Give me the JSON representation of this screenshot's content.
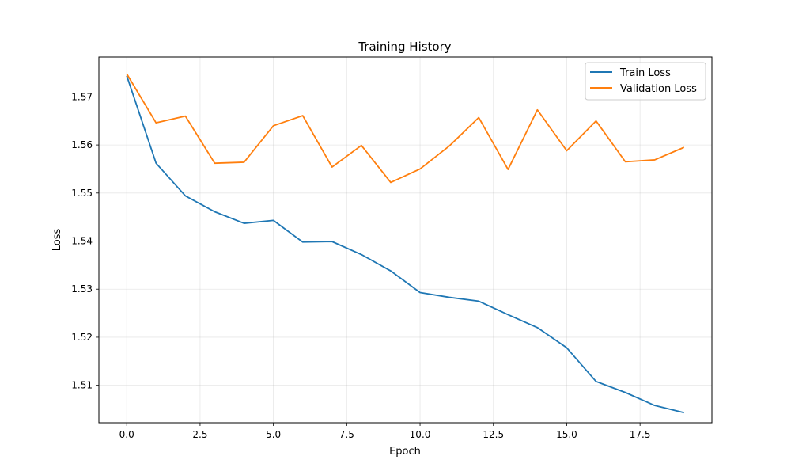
{
  "chart_data": {
    "type": "line",
    "title": "Training History",
    "xlabel": "Epoch",
    "ylabel": "Loss",
    "xlim": [
      -0.95,
      19.95
    ],
    "ylim": [
      1.5022,
      1.5783
    ],
    "xticks": [
      0,
      2.5,
      5,
      7.5,
      10,
      12.5,
      15,
      17.5
    ],
    "xtick_labels": [
      "0.0",
      "2.5",
      "5.0",
      "7.5",
      "10.0",
      "12.5",
      "15.0",
      "17.5"
    ],
    "yticks": [
      1.51,
      1.52,
      1.53,
      1.54,
      1.55,
      1.56,
      1.57
    ],
    "ytick_labels": [
      "1.51",
      "1.52",
      "1.53",
      "1.54",
      "1.55",
      "1.56",
      "1.57"
    ],
    "grid": true,
    "legend_position": "upper right",
    "x": [
      0,
      1,
      2,
      3,
      4,
      5,
      6,
      7,
      8,
      9,
      10,
      11,
      12,
      13,
      14,
      15,
      16,
      17,
      18,
      19
    ],
    "series": [
      {
        "name": "Train Loss",
        "color": "#1f77b4",
        "values": [
          1.5744,
          1.5562,
          1.5494,
          1.5461,
          1.5437,
          1.5443,
          1.5398,
          1.5399,
          1.5372,
          1.5338,
          1.5293,
          1.5283,
          1.5275,
          1.5247,
          1.522,
          1.5178,
          1.5108,
          1.5085,
          1.5058,
          1.5043
        ]
      },
      {
        "name": "Validation Loss",
        "color": "#ff7f0e",
        "values": [
          1.5748,
          1.5646,
          1.566,
          1.5562,
          1.5564,
          1.564,
          1.5661,
          1.5554,
          1.5599,
          1.5522,
          1.555,
          1.5598,
          1.5657,
          1.5549,
          1.5673,
          1.5588,
          1.565,
          1.5565,
          1.5569,
          1.5595
        ]
      }
    ]
  }
}
